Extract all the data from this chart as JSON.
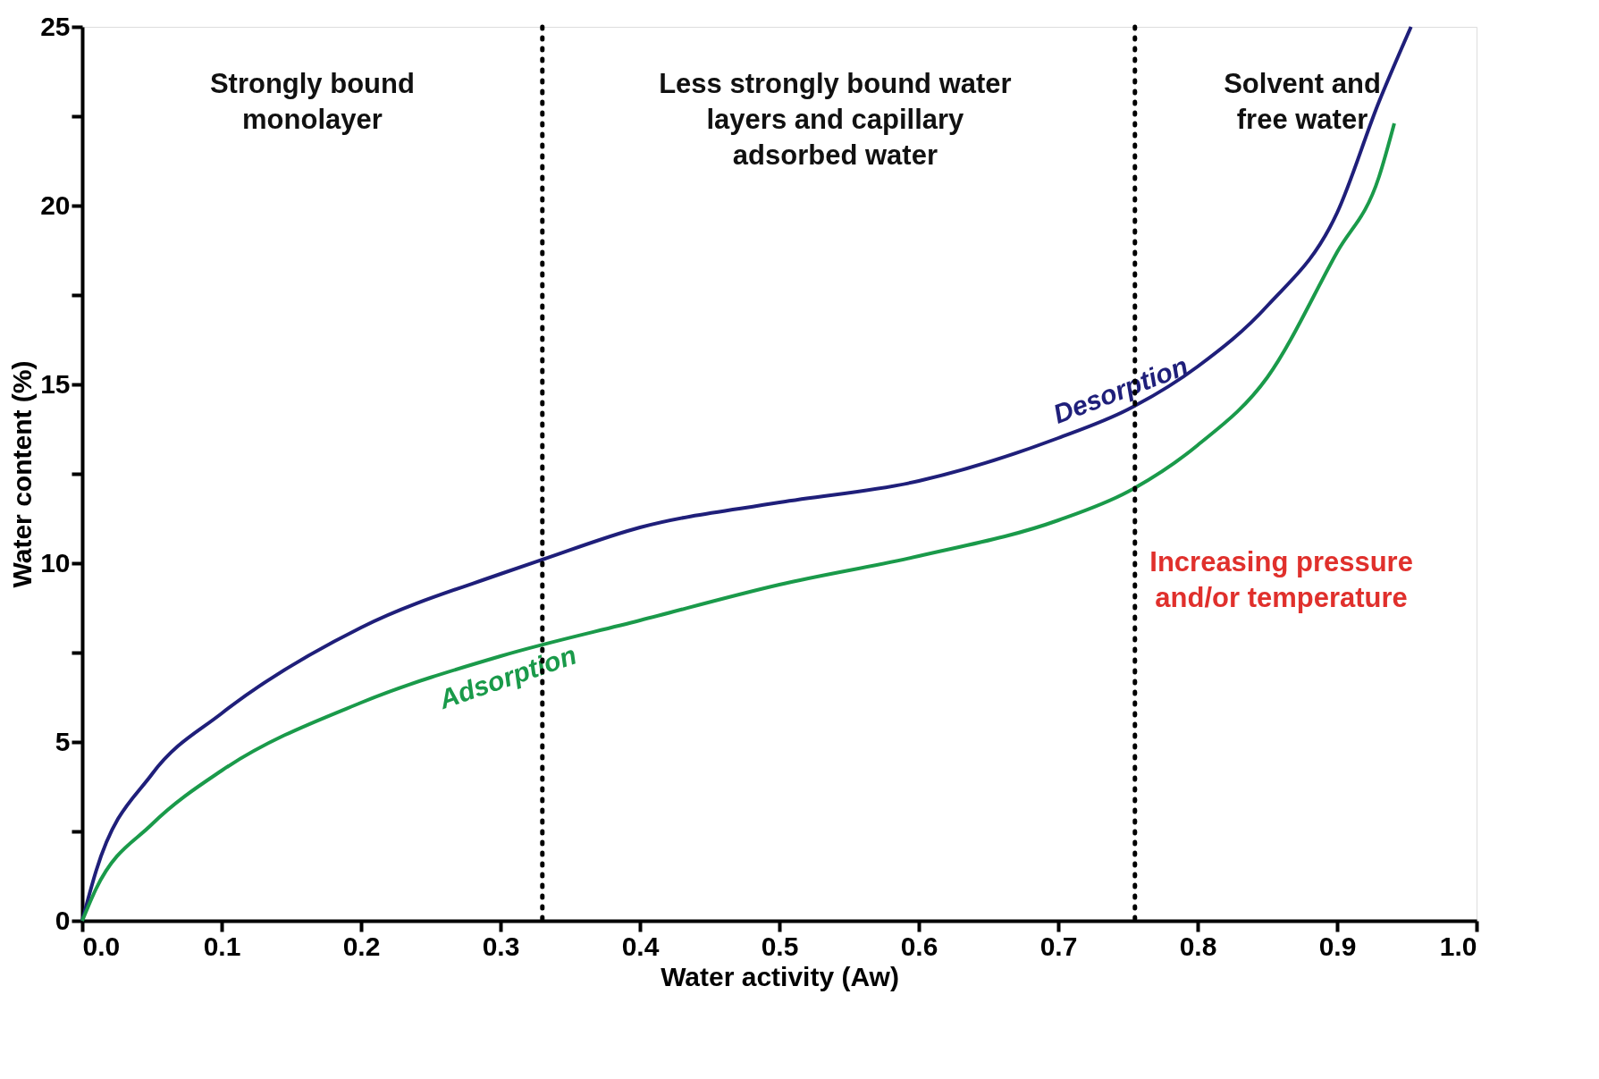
{
  "chart_data": {
    "type": "line",
    "xlabel": "Water activity (Aw)",
    "ylabel": "Water content (%)",
    "series": [
      {
        "name": "Desorption",
        "color": "#1f1f7a",
        "x": [
          0,
          0.01,
          0.05,
          0.1,
          0.2,
          0.3,
          0.33,
          0.4,
          0.5,
          0.6,
          0.7,
          0.75,
          0.8,
          0.85,
          0.9,
          0.93,
          0.953
        ],
        "values": [
          0,
          1.4,
          4.1,
          5.8,
          8.2,
          9.7,
          10.1,
          11.0,
          11.7,
          12.3,
          13.5,
          14.3,
          15.5,
          17.2,
          19.8,
          22.9,
          25
        ]
      },
      {
        "name": "Adsorption",
        "color": "#1a9a4a",
        "x": [
          0,
          0.01,
          0.05,
          0.1,
          0.2,
          0.3,
          0.4,
          0.5,
          0.6,
          0.7,
          0.75,
          0.8,
          0.85,
          0.9,
          0.93,
          0.941
        ],
        "values": [
          0,
          0.9,
          2.7,
          4.2,
          6.1,
          7.4,
          8.4,
          9.4,
          10.2,
          11.2,
          12.0,
          13.3,
          15.2,
          18.7,
          20.8,
          22.3
        ]
      }
    ],
    "xlim": [
      0,
      1.0
    ],
    "xticks": [
      {
        "value": 0,
        "label": "0.0"
      },
      0.1,
      0.2,
      0.3,
      0.4,
      0.5,
      0.6,
      0.7,
      0.8,
      0.9,
      {
        "value": 1,
        "label": "1.0"
      }
    ],
    "ylim": [
      0,
      25
    ],
    "yticks": [
      0,
      {
        "value": 2.5,
        "label": null
      },
      5,
      {
        "value": 7.5,
        "label": null
      },
      10,
      {
        "value": 12.5,
        "label": null
      },
      15,
      {
        "value": 17.5,
        "label": null
      },
      20,
      {
        "value": 22.5,
        "label": null
      },
      25
    ],
    "ref_lines": [
      {
        "axis": "x",
        "value": 0.33,
        "color": "#000000",
        "line_style": "dotted"
      },
      {
        "axis": "x",
        "value": 0.755,
        "color": "#000000",
        "line_style": "dotted"
      }
    ],
    "annotations": [
      "Strongly bound\nmonolayer",
      "Less strongly bound water\nlayers and capillary\nadsorbed water",
      "Solvent and\nfree water",
      "Increasing pressure\nand/or temperature"
    ],
    "grid": false,
    "legend": false,
    "marker": "none",
    "line_style": "solid"
  }
}
